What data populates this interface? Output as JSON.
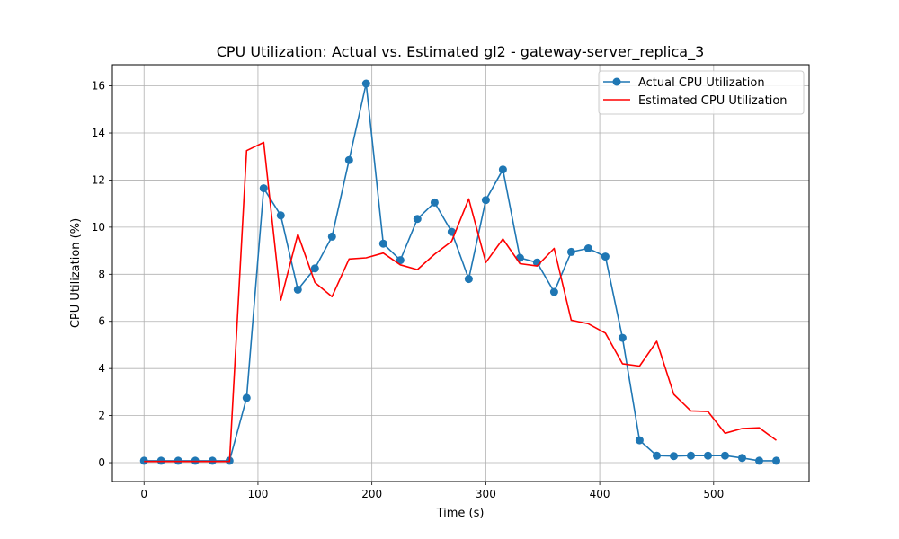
{
  "chart_data": {
    "type": "line",
    "title": "CPU Utilization: Actual vs. Estimated gl2 - gateway-server_replica_3",
    "xlabel": "Time (s)",
    "ylabel": "CPU Utilization (%)",
    "xlim": [
      -27.8,
      583.8
    ],
    "ylim": [
      -0.8,
      16.9
    ],
    "xticks": [
      0,
      100,
      200,
      300,
      400,
      500
    ],
    "yticks": [
      0,
      2,
      4,
      6,
      8,
      10,
      12,
      14,
      16
    ],
    "grid": true,
    "legend_position": "top-right",
    "series": [
      {
        "name": "Actual CPU Utilization",
        "color": "#1f77b4",
        "marker": "circle",
        "x": [
          0,
          15,
          30,
          45,
          60,
          75,
          90,
          105,
          120,
          135,
          150,
          165,
          180,
          195,
          210,
          225,
          240,
          255,
          270,
          285,
          300,
          315,
          330,
          345,
          360,
          375,
          390,
          405,
          420,
          435,
          450,
          465,
          480,
          495,
          510,
          525,
          540,
          555
        ],
        "y": [
          0.08,
          0.08,
          0.08,
          0.08,
          0.08,
          0.08,
          2.75,
          11.65,
          10.5,
          7.35,
          8.25,
          9.6,
          12.85,
          16.1,
          9.3,
          8.6,
          10.35,
          11.05,
          9.8,
          7.8,
          11.15,
          12.45,
          8.7,
          8.5,
          7.25,
          8.95,
          9.1,
          8.75,
          5.3,
          0.95,
          0.3,
          0.28,
          0.3,
          0.3,
          0.3,
          0.2,
          0.08,
          0.08
        ]
      },
      {
        "name": "Estimated CPU Utilization",
        "color": "#ff0000",
        "marker": "none",
        "x": [
          0,
          15,
          30,
          45,
          60,
          75,
          90,
          105,
          120,
          135,
          150,
          165,
          180,
          195,
          210,
          225,
          240,
          255,
          270,
          285,
          300,
          315,
          330,
          345,
          360,
          375,
          390,
          405,
          420,
          435,
          450,
          465,
          480,
          495,
          510,
          525,
          540,
          555
        ],
        "y": [
          0.05,
          0.05,
          0.05,
          0.05,
          0.05,
          0.05,
          13.25,
          13.6,
          6.9,
          9.7,
          7.65,
          7.05,
          8.65,
          8.7,
          8.9,
          8.4,
          8.2,
          8.85,
          9.4,
          11.2,
          8.5,
          9.5,
          8.45,
          8.35,
          9.1,
          6.05,
          5.9,
          5.5,
          4.2,
          4.1,
          5.15,
          2.9,
          2.2,
          2.17,
          1.25,
          1.45,
          1.48,
          0.95
        ]
      }
    ]
  }
}
